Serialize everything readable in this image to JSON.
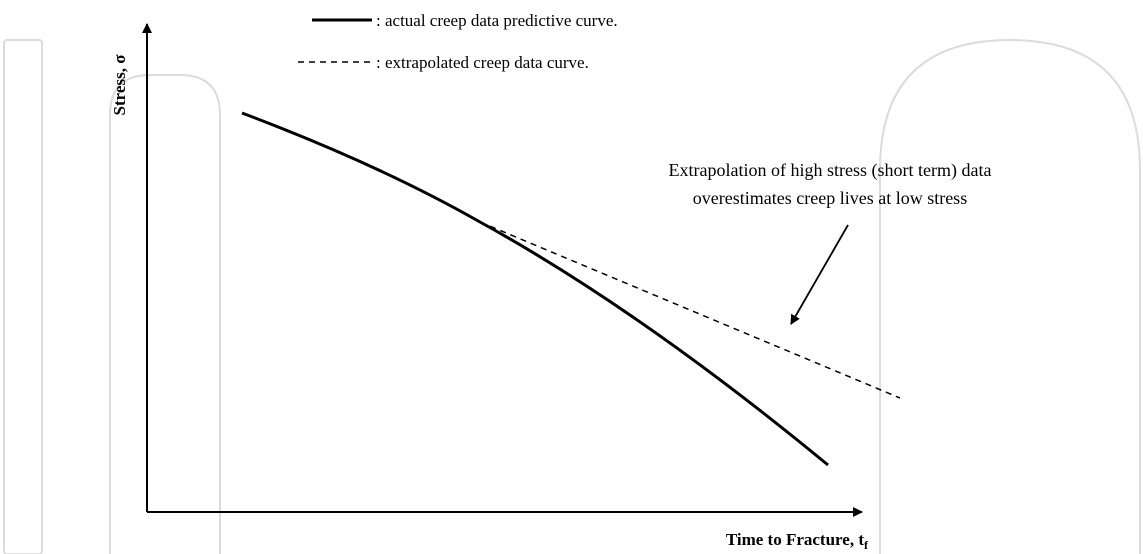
{
  "legend": [
    {
      "label": ": actual creep data predictive curve."
    },
    {
      "label": ": extrapolated creep data curve."
    }
  ],
  "annotation": [
    "Extrapolation of high stress (short term) data",
    "overestimates creep lives at low stress"
  ],
  "y_axis": {
    "label": "Stress, σ"
  },
  "x_axis": {
    "label": "Time to Fracture, t",
    "subscript": "f"
  }
}
